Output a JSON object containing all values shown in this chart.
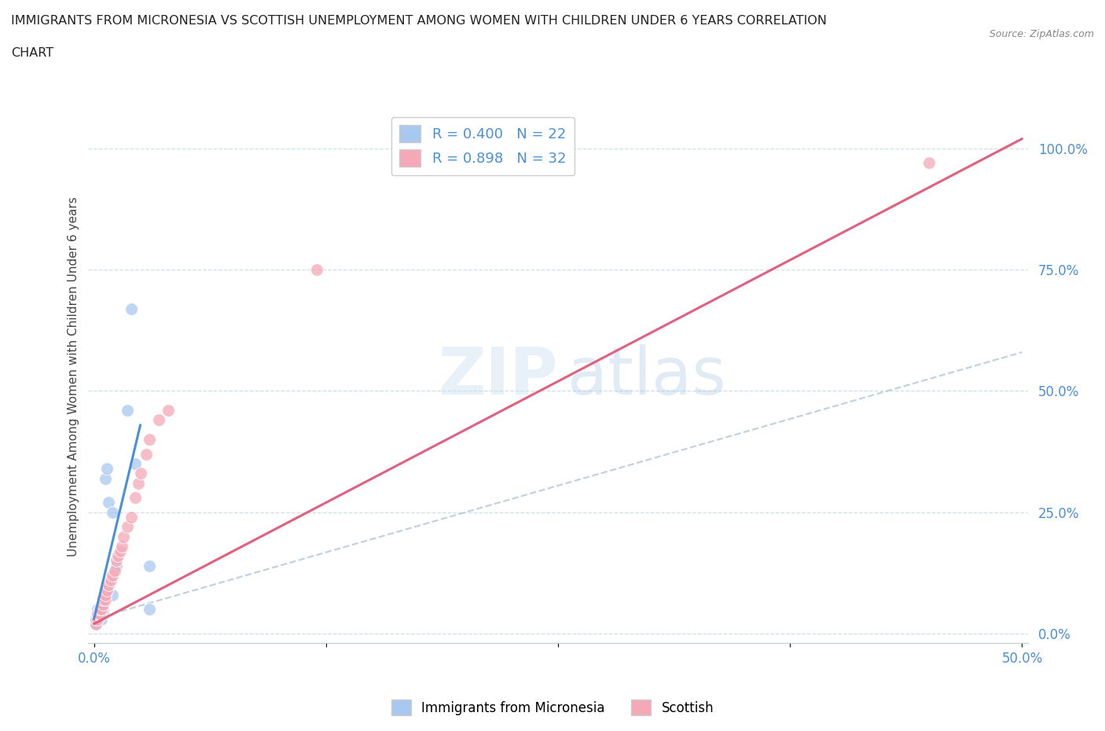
{
  "title_line1": "IMMIGRANTS FROM MICRONESIA VS SCOTTISH UNEMPLOYMENT AMONG WOMEN WITH CHILDREN UNDER 6 YEARS CORRELATION",
  "title_line2": "CHART",
  "source": "Source: ZipAtlas.com",
  "ylabel": "Unemployment Among Women with Children Under 6 years",
  "ytick_labels": [
    "0.0%",
    "25.0%",
    "50.0%",
    "75.0%",
    "100.0%"
  ],
  "ytick_values": [
    0.0,
    0.25,
    0.5,
    0.75,
    1.0
  ],
  "xlim": [
    -0.003,
    0.503
  ],
  "ylim": [
    -0.02,
    1.08
  ],
  "R_micronesia": 0.4,
  "N_micronesia": 22,
  "R_scottish": 0.898,
  "N_scottish": 32,
  "color_micronesia": "#a8c8f0",
  "color_scottish": "#f4a8b8",
  "color_micronesia_line": "#4a90d9",
  "color_scottish_line": "#e06080",
  "color_dashed": "#b0c8d8",
  "legend_label_mic": "Immigrants from Micronesia",
  "legend_label_sco": "Scottish",
  "mic_x": [
    0.001,
    0.001,
    0.002,
    0.002,
    0.002,
    0.003,
    0.003,
    0.004,
    0.004,
    0.005,
    0.005,
    0.006,
    0.007,
    0.008,
    0.01,
    0.01,
    0.012,
    0.018,
    0.02,
    0.022,
    0.03,
    0.03
  ],
  "mic_y": [
    0.02,
    0.03,
    0.03,
    0.04,
    0.05,
    0.04,
    0.05,
    0.03,
    0.04,
    0.04,
    0.05,
    0.32,
    0.34,
    0.27,
    0.25,
    0.08,
    0.14,
    0.46,
    0.67,
    0.35,
    0.05,
    0.14
  ],
  "sco_x": [
    0.001,
    0.001,
    0.002,
    0.002,
    0.003,
    0.003,
    0.004,
    0.005,
    0.005,
    0.006,
    0.006,
    0.007,
    0.008,
    0.009,
    0.01,
    0.011,
    0.012,
    0.013,
    0.014,
    0.015,
    0.016,
    0.018,
    0.02,
    0.022,
    0.024,
    0.025,
    0.028,
    0.03,
    0.035,
    0.04,
    0.12,
    0.45
  ],
  "sco_y": [
    0.02,
    0.03,
    0.03,
    0.04,
    0.04,
    0.05,
    0.05,
    0.06,
    0.07,
    0.07,
    0.08,
    0.09,
    0.1,
    0.11,
    0.12,
    0.13,
    0.15,
    0.16,
    0.17,
    0.18,
    0.2,
    0.22,
    0.24,
    0.28,
    0.31,
    0.33,
    0.37,
    0.4,
    0.44,
    0.46,
    0.75,
    0.97
  ],
  "mic_line_x": [
    0.0,
    0.025
  ],
  "mic_line_y": [
    0.03,
    0.43
  ],
  "sco_line_x": [
    0.0,
    0.5
  ],
  "sco_line_y": [
    0.02,
    1.02
  ],
  "dash_line_x": [
    0.0,
    0.5
  ],
  "dash_line_y": [
    0.03,
    0.58
  ]
}
